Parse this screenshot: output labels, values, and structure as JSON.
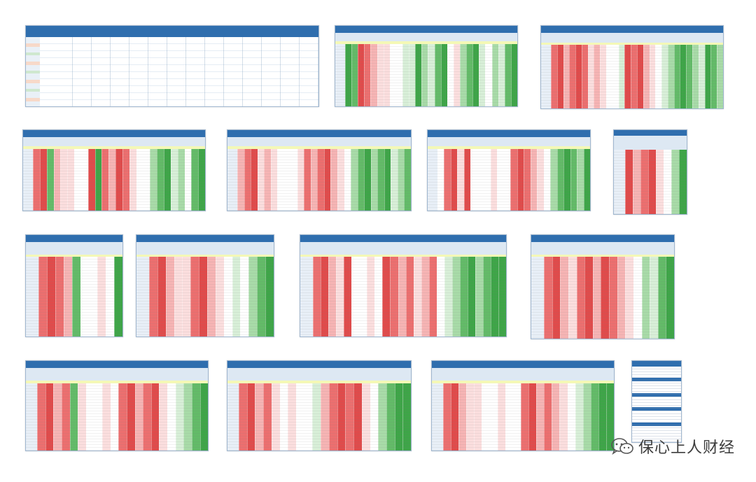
{
  "colors": {
    "header_blue": "#2f6eae",
    "deep_red": "#e04b4b",
    "red": "#ec6f6f",
    "light_red": "#f6b4b4",
    "pale_red": "#fbdede",
    "white": "#ffffff",
    "pale_green": "#d8efd8",
    "light_green": "#a8dba8",
    "green": "#63bb68",
    "deep_green": "#3ea548",
    "highlight_yellow": "#f3f6a4"
  },
  "palette_order": [
    "deep_red",
    "red",
    "light_red",
    "pale_red",
    "white",
    "pale_green",
    "light_green",
    "green",
    "deep_green"
  ],
  "watermark": {
    "text": "保心上人财经",
    "icon": "wechat-icon"
  },
  "sheets": [
    {
      "id": "sheet-1-1",
      "kind": "text",
      "pattern": []
    },
    {
      "id": "sheet-1-2",
      "kind": "heat",
      "pattern": [
        8,
        7,
        0,
        1,
        2,
        3,
        3,
        4,
        4,
        5,
        5,
        8,
        6,
        5,
        7,
        8,
        4,
        3,
        6,
        7,
        8,
        5,
        4,
        6,
        5,
        7,
        8
      ]
    },
    {
      "id": "sheet-1-3",
      "kind": "heat",
      "pattern": [
        1,
        0,
        2,
        1,
        0,
        1,
        3,
        2,
        3,
        4,
        4,
        5,
        0,
        1,
        0,
        2,
        3,
        4,
        5,
        6,
        7,
        8,
        7,
        6,
        5,
        8,
        7,
        6
      ]
    },
    {
      "id": "sheet-2-1",
      "kind": "heat",
      "pattern": [
        1,
        0,
        7,
        2,
        3,
        3,
        4,
        4,
        0,
        8,
        1,
        2,
        0,
        1,
        3,
        4,
        4,
        6,
        7,
        8,
        5,
        6,
        4,
        7,
        8
      ]
    },
    {
      "id": "sheet-2-2",
      "kind": "heat",
      "pattern": [
        2,
        1,
        0,
        3,
        2,
        3,
        4,
        4,
        4,
        3,
        1,
        2,
        1,
        0,
        2,
        3,
        4,
        6,
        7,
        8,
        6,
        7,
        8,
        5,
        6,
        7
      ]
    },
    {
      "id": "sheet-2-3",
      "kind": "heat",
      "pattern": [
        4,
        1,
        0,
        3,
        0,
        4,
        4,
        4,
        3,
        4,
        4,
        1,
        0,
        1,
        2,
        3,
        4,
        6,
        7,
        8,
        7,
        6,
        8
      ]
    },
    {
      "id": "sheet-2-4",
      "kind": "heat",
      "pattern": [
        0,
        2,
        1,
        0,
        3,
        4,
        6,
        8
      ]
    },
    {
      "id": "sheet-3-1",
      "kind": "heat",
      "pattern": [
        1,
        0,
        1,
        2,
        7,
        4,
        4,
        3,
        4,
        8
      ]
    },
    {
      "id": "sheet-3-2",
      "kind": "heat",
      "pattern": [
        1,
        0,
        2,
        3,
        3,
        1,
        0,
        2,
        3,
        4,
        5,
        4,
        6,
        7,
        8
      ]
    },
    {
      "id": "sheet-3-3",
      "kind": "heat",
      "pattern": [
        1,
        0,
        2,
        3,
        0,
        4,
        4,
        3,
        4,
        0,
        1,
        2,
        1,
        3,
        2,
        1,
        4,
        5,
        6,
        7,
        8,
        6,
        7,
        8,
        8
      ]
    },
    {
      "id": "sheet-3-4",
      "kind": "heat",
      "pattern": [
        1,
        0,
        2,
        3,
        1,
        0,
        2,
        0,
        1,
        2,
        3,
        4,
        6,
        5,
        7,
        8
      ]
    },
    {
      "id": "sheet-4-1",
      "kind": "heat",
      "pattern": [
        1,
        0,
        2,
        1,
        7,
        3,
        4,
        4,
        3,
        4,
        1,
        0,
        2,
        1,
        0,
        3,
        4,
        5,
        6,
        7,
        8
      ]
    },
    {
      "id": "sheet-4-2",
      "kind": "heat",
      "pattern": [
        1,
        0,
        2,
        1,
        3,
        4,
        3,
        4,
        4,
        5,
        2,
        1,
        0,
        1,
        0,
        3,
        4,
        6,
        7,
        8,
        8
      ]
    },
    {
      "id": "sheet-4-3",
      "kind": "heat",
      "pattern": [
        1,
        0,
        2,
        3,
        3,
        4,
        4,
        3,
        4,
        4,
        1,
        0,
        2,
        1,
        2,
        3,
        4,
        5,
        6,
        7,
        8,
        8
      ]
    },
    {
      "id": "sheet-4-4",
      "kind": "blocks",
      "pattern": []
    }
  ]
}
